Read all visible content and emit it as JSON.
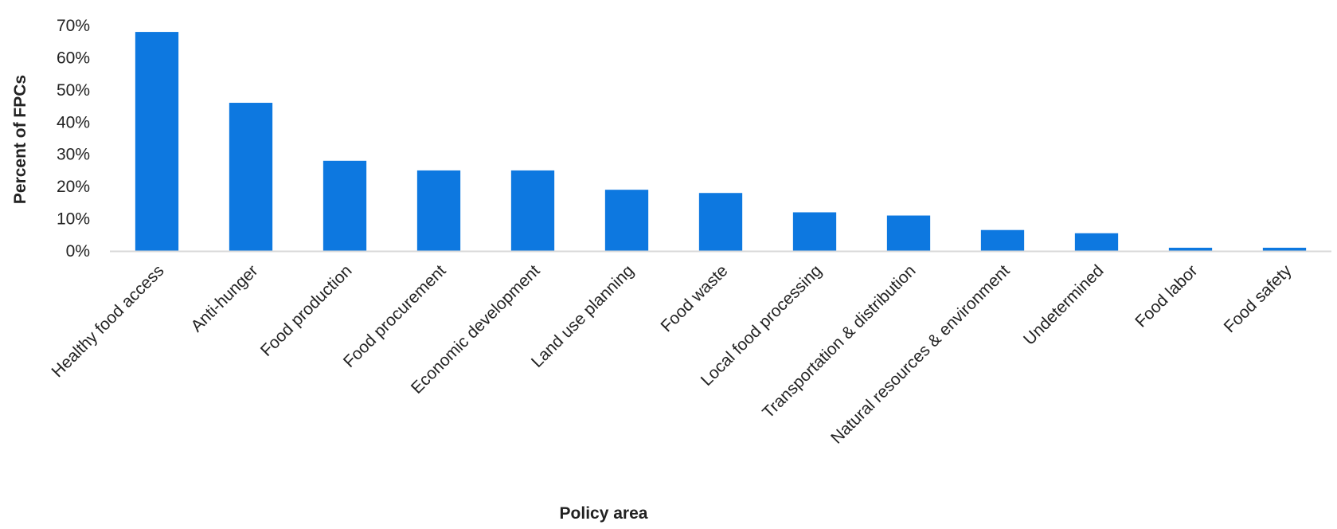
{
  "chart_data": {
    "type": "bar",
    "title": "",
    "xlabel": "Policy area",
    "ylabel": "Percent of FPCs",
    "categories": [
      "Healthy food access",
      "Anti-hunger",
      "Food production",
      "Food procurement",
      "Economic development",
      "Land use planning",
      "Food waste",
      "Local food processing",
      "Transportation & distribution",
      "Natural resources & environment",
      "Undetermined",
      "Food labor",
      "Food safety"
    ],
    "values": [
      68,
      46,
      28,
      25,
      25,
      19,
      18,
      12,
      11,
      6.5,
      5.5,
      1,
      1
    ],
    "ylim": [
      0,
      70
    ],
    "yticks": [
      "0%",
      "10%",
      "20%",
      "30%",
      "40%",
      "50%",
      "60%",
      "70%"
    ],
    "ytick_values": [
      0,
      10,
      20,
      30,
      40,
      50,
      60,
      70
    ],
    "grid": false,
    "legend": "none",
    "bar_color": "#0d78e0",
    "axis_color": "#d9d9d9"
  }
}
